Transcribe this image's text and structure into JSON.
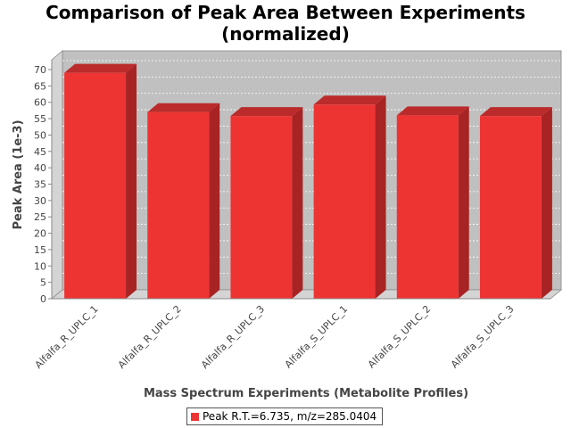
{
  "chart_data": {
    "type": "bar",
    "title_lines": [
      "Comparison of Peak Area Between Experiments",
      "(normalized)"
    ],
    "xlabel": "Mass Spectrum Experiments (Metabolite Profiles)",
    "ylabel": "Peak Area (1e-3)",
    "categories": [
      "Alfalfa_R_UPLC_1",
      "Alfalfa_R_UPLC_2",
      "Alfalfa_R_UPLC_3",
      "Alfalfa_S_UPLC_1",
      "Alfalfa_S_UPLC_2",
      "Alfalfa_S_UPLC_3"
    ],
    "series": [
      {
        "name": "Peak R.T.=6.735, m/z=285.0404",
        "values": [
          69.0,
          57.0,
          55.8,
          59.3,
          56.0,
          55.8
        ]
      }
    ],
    "ylim": [
      0,
      73
    ],
    "yticks": [
      0,
      5,
      10,
      15,
      20,
      25,
      30,
      35,
      40,
      45,
      50,
      55,
      60,
      65,
      70
    ],
    "grid": true,
    "legend_position": "bottom-center",
    "colors": {
      "bar_front": "#ee3333",
      "bar_top": "#bb2b2b",
      "bar_side": "#a82323",
      "plot_background": "#c0c0c0",
      "wall": "#d4d4d4",
      "gridline": "#ffffff"
    }
  }
}
